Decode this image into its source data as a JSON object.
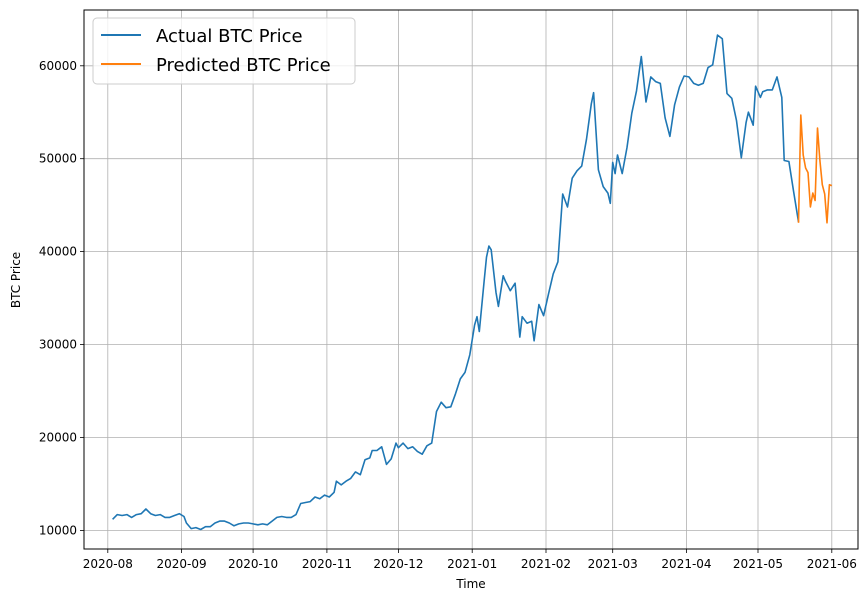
{
  "chart_data": {
    "type": "line",
    "title": "",
    "xlabel": "Time",
    "ylabel": "BTC Price",
    "xlim": [
      "2020-07-22",
      "2021-06-12"
    ],
    "ylim": [
      8000,
      66000
    ],
    "grid": true,
    "legend_position": "top-left",
    "x_ticks": [
      "2020-08-01",
      "2020-09-01",
      "2020-10-01",
      "2020-11-01",
      "2020-12-01",
      "2021-01-01",
      "2021-02-01",
      "2021-03-01",
      "2021-04-01",
      "2021-05-01",
      "2021-06-01"
    ],
    "x_tick_labels": [
      "2020-08",
      "2020-09",
      "2020-10",
      "2020-11",
      "2020-12",
      "2021-01",
      "2021-02",
      "2021-03",
      "2021-04",
      "2021-05",
      "2021-06"
    ],
    "y_ticks": [
      10000,
      20000,
      30000,
      40000,
      50000,
      60000
    ],
    "y_tick_labels": [
      "10000",
      "20000",
      "30000",
      "40000",
      "50000",
      "60000"
    ],
    "series": [
      {
        "name": "Actual BTC Price",
        "color": "#1f77b4",
        "points": [
          [
            "2020-08-03",
            11200
          ],
          [
            "2020-08-05",
            11700
          ],
          [
            "2020-08-07",
            11600
          ],
          [
            "2020-08-09",
            11700
          ],
          [
            "2020-08-11",
            11400
          ],
          [
            "2020-08-13",
            11700
          ],
          [
            "2020-08-15",
            11800
          ],
          [
            "2020-08-17",
            12300
          ],
          [
            "2020-08-19",
            11800
          ],
          [
            "2020-08-21",
            11600
          ],
          [
            "2020-08-23",
            11700
          ],
          [
            "2020-08-25",
            11400
          ],
          [
            "2020-08-27",
            11400
          ],
          [
            "2020-08-29",
            11600
          ],
          [
            "2020-08-31",
            11800
          ],
          [
            "2020-09-02",
            11500
          ],
          [
            "2020-09-03",
            10800
          ],
          [
            "2020-09-05",
            10200
          ],
          [
            "2020-09-07",
            10300
          ],
          [
            "2020-09-09",
            10100
          ],
          [
            "2020-09-11",
            10400
          ],
          [
            "2020-09-13",
            10400
          ],
          [
            "2020-09-15",
            10800
          ],
          [
            "2020-09-17",
            11000
          ],
          [
            "2020-09-19",
            11000
          ],
          [
            "2020-09-21",
            10800
          ],
          [
            "2020-09-23",
            10500
          ],
          [
            "2020-09-25",
            10700
          ],
          [
            "2020-09-27",
            10800
          ],
          [
            "2020-09-29",
            10800
          ],
          [
            "2020-10-01",
            10700
          ],
          [
            "2020-10-03",
            10600
          ],
          [
            "2020-10-05",
            10700
          ],
          [
            "2020-10-07",
            10600
          ],
          [
            "2020-10-09",
            11000
          ],
          [
            "2020-10-11",
            11400
          ],
          [
            "2020-10-13",
            11500
          ],
          [
            "2020-10-15",
            11400
          ],
          [
            "2020-10-17",
            11400
          ],
          [
            "2020-10-19",
            11700
          ],
          [
            "2020-10-21",
            12900
          ],
          [
            "2020-10-23",
            13000
          ],
          [
            "2020-10-25",
            13100
          ],
          [
            "2020-10-27",
            13600
          ],
          [
            "2020-10-29",
            13400
          ],
          [
            "2020-10-31",
            13800
          ],
          [
            "2020-11-02",
            13600
          ],
          [
            "2020-11-04",
            14100
          ],
          [
            "2020-11-05",
            15300
          ],
          [
            "2020-11-07",
            14900
          ],
          [
            "2020-11-09",
            15300
          ],
          [
            "2020-11-11",
            15600
          ],
          [
            "2020-11-13",
            16300
          ],
          [
            "2020-11-15",
            16000
          ],
          [
            "2020-11-17",
            17600
          ],
          [
            "2020-11-19",
            17800
          ],
          [
            "2020-11-20",
            18600
          ],
          [
            "2020-11-22",
            18600
          ],
          [
            "2020-11-24",
            19000
          ],
          [
            "2020-11-26",
            17100
          ],
          [
            "2020-11-28",
            17700
          ],
          [
            "2020-11-30",
            19400
          ],
          [
            "2020-12-01",
            18900
          ],
          [
            "2020-12-03",
            19400
          ],
          [
            "2020-12-05",
            18800
          ],
          [
            "2020-12-07",
            19000
          ],
          [
            "2020-12-09",
            18500
          ],
          [
            "2020-12-11",
            18200
          ],
          [
            "2020-12-13",
            19100
          ],
          [
            "2020-12-15",
            19400
          ],
          [
            "2020-12-17",
            22800
          ],
          [
            "2020-12-19",
            23800
          ],
          [
            "2020-12-21",
            23200
          ],
          [
            "2020-12-23",
            23300
          ],
          [
            "2020-12-25",
            24700
          ],
          [
            "2020-12-27",
            26300
          ],
          [
            "2020-12-29",
            27000
          ],
          [
            "2020-12-31",
            28900
          ],
          [
            "2021-01-02",
            32100
          ],
          [
            "2021-01-03",
            33000
          ],
          [
            "2021-01-04",
            31400
          ],
          [
            "2021-01-06",
            36800
          ],
          [
            "2021-01-07",
            39400
          ],
          [
            "2021-01-08",
            40600
          ],
          [
            "2021-01-09",
            40200
          ],
          [
            "2021-01-11",
            35600
          ],
          [
            "2021-01-12",
            34100
          ],
          [
            "2021-01-14",
            37400
          ],
          [
            "2021-01-15",
            36800
          ],
          [
            "2021-01-17",
            35800
          ],
          [
            "2021-01-19",
            36600
          ],
          [
            "2021-01-21",
            30800
          ],
          [
            "2021-01-22",
            33000
          ],
          [
            "2021-01-24",
            32300
          ],
          [
            "2021-01-26",
            32500
          ],
          [
            "2021-01-27",
            30400
          ],
          [
            "2021-01-29",
            34300
          ],
          [
            "2021-01-31",
            33100
          ],
          [
            "2021-02-02",
            35400
          ],
          [
            "2021-02-04",
            37600
          ],
          [
            "2021-02-06",
            38900
          ],
          [
            "2021-02-08",
            46200
          ],
          [
            "2021-02-10",
            44800
          ],
          [
            "2021-02-12",
            47900
          ],
          [
            "2021-02-14",
            48700
          ],
          [
            "2021-02-16",
            49200
          ],
          [
            "2021-02-18",
            52100
          ],
          [
            "2021-02-20",
            55900
          ],
          [
            "2021-02-21",
            57100
          ],
          [
            "2021-02-23",
            48800
          ],
          [
            "2021-02-25",
            47000
          ],
          [
            "2021-02-27",
            46300
          ],
          [
            "2021-02-28",
            45200
          ],
          [
            "2021-03-01",
            49600
          ],
          [
            "2021-03-02",
            48400
          ],
          [
            "2021-03-03",
            50400
          ],
          [
            "2021-03-05",
            48400
          ],
          [
            "2021-03-07",
            51200
          ],
          [
            "2021-03-09",
            54900
          ],
          [
            "2021-03-11",
            57300
          ],
          [
            "2021-03-13",
            61000
          ],
          [
            "2021-03-15",
            56100
          ],
          [
            "2021-03-17",
            58800
          ],
          [
            "2021-03-19",
            58300
          ],
          [
            "2021-03-21",
            58100
          ],
          [
            "2021-03-23",
            54400
          ],
          [
            "2021-03-25",
            52400
          ],
          [
            "2021-03-27",
            55800
          ],
          [
            "2021-03-29",
            57700
          ],
          [
            "2021-03-31",
            58900
          ],
          [
            "2021-04-02",
            58800
          ],
          [
            "2021-04-04",
            58100
          ],
          [
            "2021-04-06",
            57900
          ],
          [
            "2021-04-08",
            58100
          ],
          [
            "2021-04-10",
            59800
          ],
          [
            "2021-04-12",
            60100
          ],
          [
            "2021-04-14",
            63300
          ],
          [
            "2021-04-16",
            62900
          ],
          [
            "2021-04-18",
            57000
          ],
          [
            "2021-04-20",
            56500
          ],
          [
            "2021-04-22",
            54100
          ],
          [
            "2021-04-24",
            50100
          ],
          [
            "2021-04-26",
            53900
          ],
          [
            "2021-04-27",
            55000
          ],
          [
            "2021-04-29",
            53600
          ],
          [
            "2021-04-30",
            57800
          ],
          [
            "2021-05-02",
            56600
          ],
          [
            "2021-05-03",
            57200
          ],
          [
            "2021-05-05",
            57400
          ],
          [
            "2021-05-07",
            57400
          ],
          [
            "2021-05-09",
            58800
          ],
          [
            "2021-05-11",
            56600
          ],
          [
            "2021-05-12",
            49800
          ],
          [
            "2021-05-14",
            49700
          ],
          [
            "2021-05-16",
            46400
          ],
          [
            "2021-05-18",
            43200
          ]
        ]
      },
      {
        "name": "Predicted BTC Price",
        "color": "#ff7f0e",
        "points": [
          [
            "2021-05-18",
            43100
          ],
          [
            "2021-05-19",
            54700
          ],
          [
            "2021-05-20",
            50400
          ],
          [
            "2021-05-21",
            49000
          ],
          [
            "2021-05-22",
            48500
          ],
          [
            "2021-05-23",
            44800
          ],
          [
            "2021-05-24",
            46300
          ],
          [
            "2021-05-25",
            45500
          ],
          [
            "2021-05-26",
            53300
          ],
          [
            "2021-05-27",
            49800
          ],
          [
            "2021-05-28",
            47200
          ],
          [
            "2021-05-29",
            46200
          ],
          [
            "2021-05-30",
            43100
          ],
          [
            "2021-05-31",
            47200
          ],
          [
            "2021-06-01",
            47100
          ]
        ]
      }
    ]
  }
}
